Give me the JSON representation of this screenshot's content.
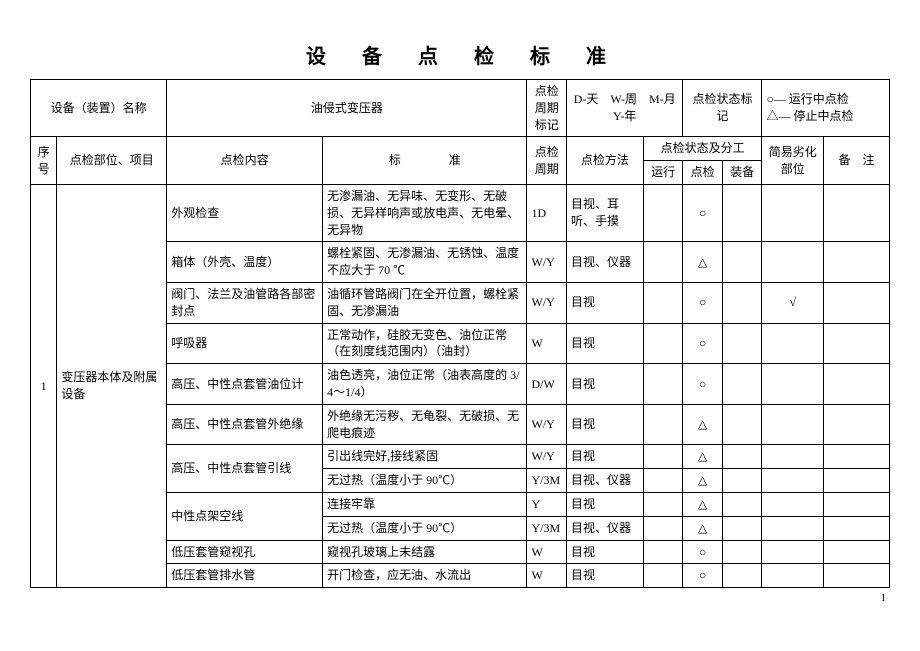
{
  "title": "设　备　点　检　标　准",
  "header": {
    "equip_name_label": "设备（装置）名称",
    "equip_name_value": "油侵式变压器",
    "period_mark_label": "点检周期标记",
    "period_mark_value": "D-天　W-周　M-月　Y-年",
    "status_mark_label": "点检状态标记",
    "status_mark_value": "○— 运行中点检\n△— 停止中点检"
  },
  "cols": {
    "seq": "序号",
    "part": "点检部位、项目",
    "content": "点检内容",
    "standard": "标　　　　准",
    "period": "点检周期",
    "method": "点检方法",
    "status_group": "点检状态及分工",
    "run": "运行",
    "check": "点检",
    "equip": "装备",
    "deterioration": "简易劣化部位",
    "remark": "备　注"
  },
  "group": {
    "seq": "1",
    "part": "变压器本体及附属设备"
  },
  "rows": [
    {
      "content": "外观检查",
      "standard": "无渗漏油、无异味、无变形、无破损、无异样响声或放电声、无电晕、无异物",
      "period": "1D",
      "method": "目视、耳听、手摸",
      "run": "",
      "check": "○",
      "equip": "",
      "det": "",
      "remark": ""
    },
    {
      "content": "箱体（外壳、温度）",
      "standard": "螺栓紧固、无渗漏油、无锈蚀、温度不应大于 70 ℃",
      "period": "W/Y",
      "method": "目视、仪器",
      "run": "",
      "check": "△",
      "equip": "",
      "det": "",
      "remark": ""
    },
    {
      "content": "阀门、法兰及油管路各部密封点",
      "standard": "油循环管路阀门在全开位置，螺栓紧固、无渗漏油",
      "period": "W/Y",
      "method": "目视",
      "run": "",
      "check": "○",
      "equip": "",
      "det": "√",
      "remark": ""
    },
    {
      "content": "呼吸器",
      "standard": "正常动作，硅胶无变色、油位正常（在刻度线范围内）（油封）",
      "period": "W",
      "method": "目视",
      "run": "",
      "check": "○",
      "equip": "",
      "det": "",
      "remark": ""
    },
    {
      "content": "高压、中性点套管油位计",
      "standard": "油色透亮，油位正常（油表高度的 3/4～1/4）",
      "period": "D/W",
      "method": "目视",
      "run": "",
      "check": "○",
      "equip": "",
      "det": "",
      "remark": ""
    },
    {
      "content": "高压、中性点套管外绝缘",
      "standard": "外绝缘无污秽、无龟裂、无破损、无爬电痕迹",
      "period": "W/Y",
      "method": "目视",
      "run": "",
      "check": "△",
      "equip": "",
      "det": "",
      "remark": ""
    },
    {
      "content": "",
      "standard": "引出线完好,接线紧固",
      "period": "W/Y",
      "method": "目视",
      "run": "",
      "check": "△",
      "equip": "",
      "det": "",
      "remark": ""
    },
    {
      "content": "高压、中性点套管引线",
      "standard": "无过热（温度小于 90℃）",
      "period": "Y/3M",
      "method": "目视、仪器",
      "run": "",
      "check": "△",
      "equip": "",
      "det": "",
      "remark": ""
    },
    {
      "content": "",
      "standard": "连接牢靠",
      "period": "Y",
      "method": "目视",
      "run": "",
      "check": "△",
      "equip": "",
      "det": "",
      "remark": ""
    },
    {
      "content": "中性点架空线",
      "standard": "无过热（温度小于 90℃）",
      "period": "Y/3M",
      "method": "目视、仪器",
      "run": "",
      "check": "△",
      "equip": "",
      "det": "",
      "remark": ""
    },
    {
      "content": "低压套管窥视孔",
      "standard": "窥视孔玻璃上未结露",
      "period": "W",
      "method": "目视",
      "run": "",
      "check": "○",
      "equip": "",
      "det": "",
      "remark": ""
    },
    {
      "content": "低压套管排水管",
      "standard": "开门检查，应无油、水流出",
      "period": "W",
      "method": "目视",
      "run": "",
      "check": "○",
      "equip": "",
      "det": "",
      "remark": ""
    }
  ],
  "pagenum": "1",
  "widths": {
    "seq": 24,
    "part": 100,
    "content": 142,
    "standard": 186,
    "period": 36,
    "method": 70,
    "run": 36,
    "check": 36,
    "equip": 36,
    "det": 56,
    "remark": 60
  }
}
